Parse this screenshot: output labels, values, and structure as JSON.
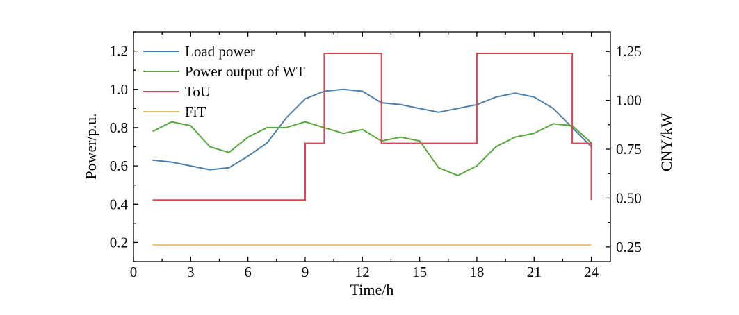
{
  "chart_data": {
    "type": "line",
    "title": "",
    "xlabel": "Time/h",
    "ylabel_left": "Power/p.u.",
    "ylabel_right": "CNY/kW",
    "xlim": [
      0,
      25
    ],
    "ylim_left": [
      0.1,
      1.3
    ],
    "ylim_right": [
      0.175,
      1.35
    ],
    "x_ticks": [
      0,
      3,
      6,
      9,
      12,
      15,
      18,
      21,
      24
    ],
    "x_tick_labels": [
      "0",
      "3",
      "6",
      "9",
      "12",
      "15",
      "18",
      "21",
      "24"
    ],
    "y_left_ticks": [
      0.2,
      0.4,
      0.6,
      0.8,
      1.0,
      1.2
    ],
    "y_left_tick_labels": [
      "0.2",
      "0.4",
      "0.6",
      "0.8",
      "1.0",
      "1.2"
    ],
    "y_right_ticks": [
      0.25,
      0.5,
      0.75,
      1.0,
      1.25
    ],
    "y_right_tick_labels": [
      "0.25",
      "0.50",
      "0.75",
      "1.00",
      "1.25"
    ],
    "legend_position": "top-left",
    "series": [
      {
        "name": "Load power",
        "axis": "left",
        "style": "line",
        "color": "#4a7fab",
        "x": [
          1,
          2,
          3,
          4,
          5,
          6,
          7,
          8,
          9,
          10,
          11,
          12,
          13,
          14,
          15,
          16,
          17,
          18,
          19,
          20,
          21,
          22,
          23,
          24
        ],
        "values": [
          0.63,
          0.62,
          0.6,
          0.58,
          0.59,
          0.65,
          0.72,
          0.85,
          0.95,
          0.99,
          1.0,
          0.99,
          0.93,
          0.92,
          0.9,
          0.88,
          0.9,
          0.92,
          0.96,
          0.98,
          0.96,
          0.9,
          0.8,
          0.7
        ]
      },
      {
        "name": "Power output of WT",
        "axis": "left",
        "style": "line",
        "color": "#56a83a",
        "x": [
          1,
          2,
          3,
          4,
          5,
          6,
          7,
          8,
          9,
          10,
          11,
          12,
          13,
          14,
          15,
          16,
          17,
          18,
          19,
          20,
          21,
          22,
          23,
          24
        ],
        "values": [
          0.78,
          0.83,
          0.81,
          0.7,
          0.67,
          0.75,
          0.8,
          0.8,
          0.83,
          0.8,
          0.77,
          0.79,
          0.73,
          0.75,
          0.73,
          0.59,
          0.55,
          0.6,
          0.7,
          0.75,
          0.77,
          0.82,
          0.81,
          0.72
        ]
      },
      {
        "name": "ToU",
        "axis": "right",
        "style": "step",
        "color": "#e0434e",
        "x": [
          1,
          9,
          9,
          10,
          10,
          13,
          13,
          18,
          18,
          23,
          23,
          24,
          24
        ],
        "values": [
          0.49,
          0.49,
          0.78,
          0.78,
          1.24,
          1.24,
          0.78,
          0.78,
          1.24,
          1.24,
          0.78,
          0.78,
          0.49
        ]
      },
      {
        "name": "FiT",
        "axis": "right",
        "style": "line",
        "color": "#e3c17f",
        "x": [
          1,
          24
        ],
        "values": [
          0.26,
          0.26
        ]
      }
    ]
  }
}
